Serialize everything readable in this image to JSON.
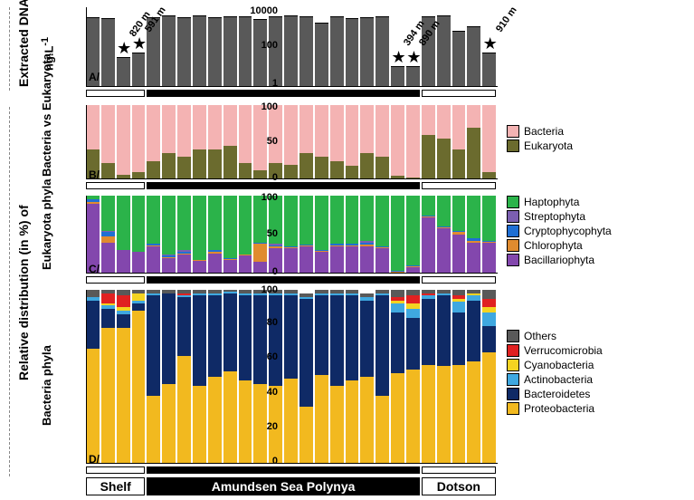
{
  "panelA": {
    "ylabel_top": "Extracted DNA",
    "unit_label": "ng.L",
    "unit_sup": "-1",
    "letter": "A/",
    "ticks": [
      "10000",
      "100",
      "1"
    ],
    "values": [
      3000,
      2500,
      30,
      50,
      3000,
      3500,
      3000,
      3500,
      2800,
      3200,
      3300,
      2200,
      3200,
      3400,
      3200,
      1500,
      3200,
      2500,
      2900,
      3200,
      10,
      10,
      3300,
      3500,
      600,
      1000,
      50
    ],
    "color": "#595959",
    "stars": [
      {
        "idx": 2,
        "label": "820 m"
      },
      {
        "idx": 3,
        "label": "591 m"
      },
      {
        "idx": 20,
        "label": "394 m"
      },
      {
        "idx": 21,
        "label": "890 m"
      },
      {
        "idx": 26,
        "label": "910 m"
      }
    ]
  },
  "panelB": {
    "ylabel": "Bacteria vs Eukaryota",
    "letter": "B/",
    "ticks": [
      "100",
      "50",
      "0"
    ],
    "categories": [
      "Bacteria",
      "Eukaryota"
    ],
    "colors": {
      "Bacteria": "#f4b3b3",
      "Eukaryota": "#6b6b2e"
    },
    "data": [
      [
        60,
        40
      ],
      [
        78,
        22
      ],
      [
        94,
        6
      ],
      [
        90,
        10
      ],
      [
        75,
        25
      ],
      [
        65,
        35
      ],
      [
        70,
        30
      ],
      [
        60,
        40
      ],
      [
        60,
        40
      ],
      [
        55,
        45
      ],
      [
        78,
        22
      ],
      [
        88,
        12
      ],
      [
        78,
        22
      ],
      [
        80,
        20
      ],
      [
        65,
        35
      ],
      [
        70,
        30
      ],
      [
        75,
        25
      ],
      [
        82,
        18
      ],
      [
        65,
        35
      ],
      [
        70,
        30
      ],
      [
        95,
        5
      ],
      [
        97,
        3
      ],
      [
        40,
        60
      ],
      [
        45,
        55
      ],
      [
        60,
        40
      ],
      [
        30,
        70
      ],
      [
        90,
        10
      ]
    ]
  },
  "panelC": {
    "ylabel": "Eukaryota phyla",
    "letter": "C/",
    "ticks": [
      "100",
      "50",
      "0"
    ],
    "categories": [
      "Haptophyta",
      "Streptophyta",
      "Cryptophycophyta",
      "Chlorophyta",
      "Bacillariophyta"
    ],
    "colors": {
      "Haptophyta": "#2bb34a",
      "Streptophyta": "#7b5fb0",
      "Cryptophycophyta": "#1f6fd4",
      "Chlorophyta": "#e08b2f",
      "Bacillariophyta": "#8347ad"
    },
    "data": [
      [
        5,
        0,
        3,
        2,
        90
      ],
      [
        45,
        2,
        5,
        8,
        40
      ],
      [
        70,
        0,
        0,
        0,
        30
      ],
      [
        72,
        0,
        0,
        0,
        28
      ],
      [
        62,
        0,
        2,
        1,
        35
      ],
      [
        75,
        2,
        2,
        1,
        20
      ],
      [
        70,
        2,
        2,
        1,
        25
      ],
      [
        82,
        0,
        1,
        1,
        16
      ],
      [
        70,
        0,
        2,
        2,
        26
      ],
      [
        80,
        0,
        1,
        1,
        18
      ],
      [
        75,
        0,
        1,
        1,
        23
      ],
      [
        60,
        0,
        2,
        23,
        15
      ],
      [
        62,
        2,
        1,
        2,
        33
      ],
      [
        65,
        0,
        1,
        2,
        32
      ],
      [
        63,
        0,
        1,
        1,
        35
      ],
      [
        70,
        0,
        1,
        1,
        28
      ],
      [
        62,
        0,
        2,
        1,
        35
      ],
      [
        62,
        0,
        2,
        1,
        35
      ],
      [
        58,
        2,
        3,
        2,
        35
      ],
      [
        65,
        0,
        1,
        1,
        33
      ],
      [
        97,
        0,
        1,
        1,
        1
      ],
      [
        90,
        0,
        1,
        1,
        8
      ],
      [
        25,
        0,
        2,
        1,
        72
      ],
      [
        40,
        0,
        1,
        1,
        58
      ],
      [
        45,
        0,
        2,
        3,
        50
      ],
      [
        55,
        0,
        3,
        2,
        40
      ],
      [
        58,
        0,
        1,
        1,
        40
      ]
    ]
  },
  "panelD": {
    "ylabel": "Bacteria phyla",
    "letter": "D/",
    "ticks": [
      "100",
      "80",
      "60",
      "40",
      "20",
      "0"
    ],
    "categories": [
      "Others",
      "Verrucomicrobia",
      "Cyanobacteria",
      "Actinobacteria",
      "Bacteroidetes",
      "Proteobacteria"
    ],
    "colors": {
      "Others": "#595959",
      "Verrucomicrobia": "#e02121",
      "Cyanobacteria": "#f4d321",
      "Actinobacteria": "#3fa8e0",
      "Bacteroidetes": "#0f2a66",
      "Proteobacteria": "#f2b91f"
    },
    "data": [
      [
        4,
        0,
        0,
        2,
        28,
        66
      ],
      [
        2,
        6,
        1,
        2,
        11,
        78
      ],
      [
        3,
        7,
        2,
        2,
        8,
        78
      ],
      [
        2,
        0,
        4,
        2,
        4,
        88
      ],
      [
        2,
        0,
        0,
        1,
        58,
        39
      ],
      [
        2,
        0,
        0,
        0,
        52,
        46
      ],
      [
        2,
        1,
        0,
        1,
        34,
        62
      ],
      [
        2,
        0,
        0,
        1,
        52,
        45
      ],
      [
        2,
        0,
        0,
        1,
        47,
        50
      ],
      [
        1,
        0,
        0,
        1,
        45,
        53
      ],
      [
        2,
        0,
        0,
        1,
        49,
        48
      ],
      [
        2,
        0,
        0,
        1,
        51,
        46
      ],
      [
        2,
        0,
        0,
        1,
        52,
        45
      ],
      [
        2,
        0,
        0,
        1,
        48,
        49
      ],
      [
        2,
        0,
        0,
        1,
        62,
        33
      ],
      [
        2,
        0,
        0,
        1,
        46,
        51
      ],
      [
        2,
        0,
        0,
        1,
        52,
        45
      ],
      [
        2,
        0,
        0,
        1,
        49,
        48
      ],
      [
        2,
        0,
        0,
        2,
        44,
        50
      ],
      [
        2,
        0,
        0,
        1,
        58,
        39
      ],
      [
        4,
        2,
        2,
        5,
        35,
        52
      ],
      [
        3,
        5,
        3,
        5,
        30,
        54
      ],
      [
        2,
        1,
        0,
        2,
        38,
        57
      ],
      [
        2,
        0,
        0,
        1,
        41,
        56
      ],
      [
        3,
        2,
        2,
        6,
        30,
        57
      ],
      [
        2,
        0,
        1,
        3,
        35,
        59
      ],
      [
        5,
        5,
        3,
        8,
        15,
        64
      ]
    ]
  },
  "regions": {
    "groups": [
      {
        "label": "Shelf",
        "start": 0,
        "end": 4,
        "black": false
      },
      {
        "label": "Amundsen Sea Polynya",
        "start": 4,
        "end": 22,
        "black": true
      },
      {
        "label": "Dotson",
        "start": 22,
        "end": 27,
        "black": false
      }
    ]
  },
  "bigLabel": "Relative distribution (in %) of"
}
